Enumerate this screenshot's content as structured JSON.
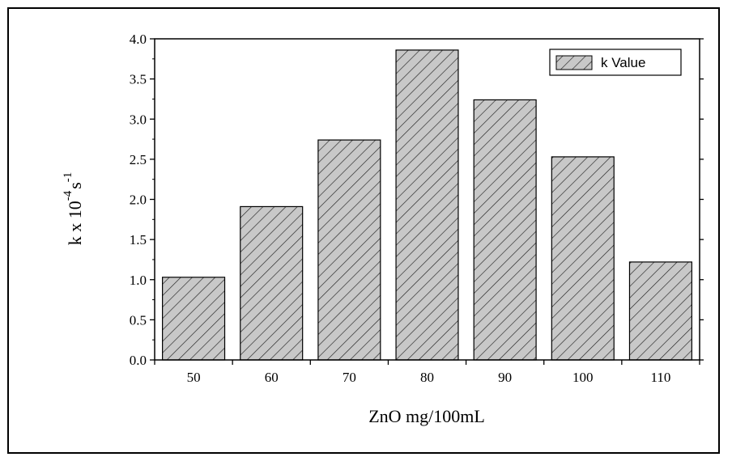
{
  "chart_data": {
    "type": "bar",
    "categories": [
      "50",
      "60",
      "70",
      "80",
      "90",
      "100",
      "110"
    ],
    "series": [
      {
        "name": "k Value",
        "values": [
          1.03,
          1.91,
          2.74,
          3.86,
          3.24,
          2.53,
          1.22
        ]
      }
    ],
    "ylim": [
      0,
      4
    ],
    "yticks": [
      "0.0",
      "0.5",
      "1.0",
      "1.5",
      "2.0",
      "2.5",
      "3.0",
      "3.5",
      "4.0"
    ],
    "xlabel": "ZnO mg/100mL",
    "ylabel": {
      "base": "k x 10",
      "exponent": "-4",
      "unit": "s",
      "unit_exponent": "-1"
    },
    "legend": {
      "label": "k Value",
      "position": "top-right"
    },
    "bar_fill": "#c8c8c8",
    "bar_hatch": "diagonal",
    "grid": false
  }
}
